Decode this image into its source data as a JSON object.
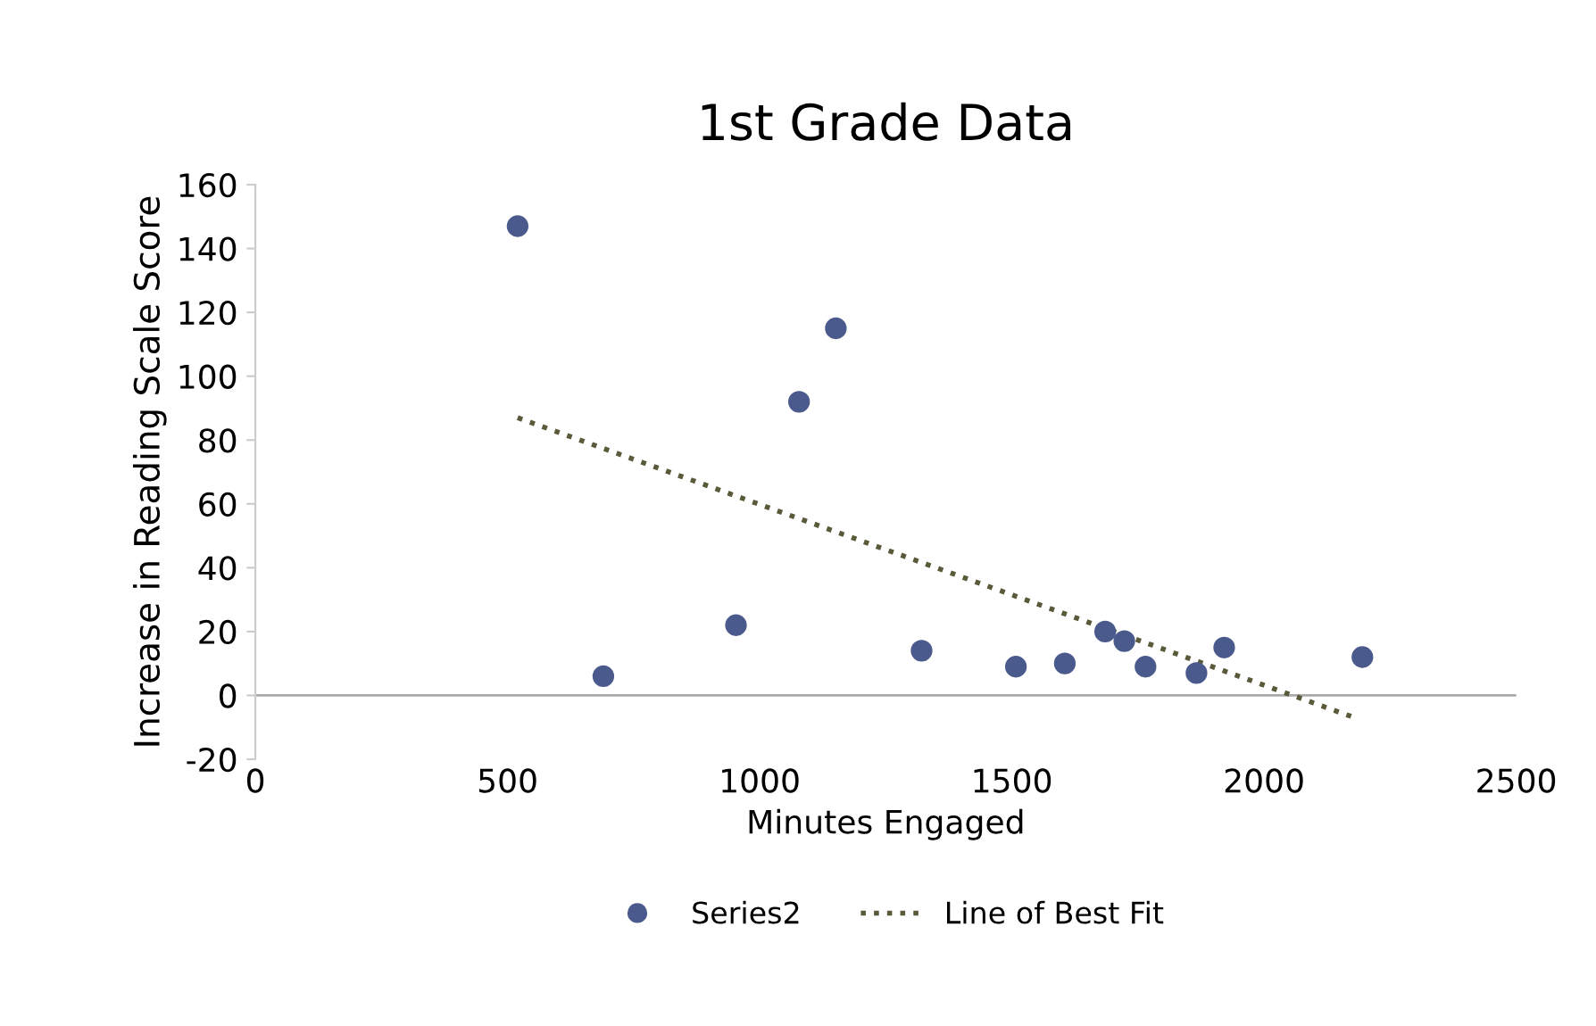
{
  "chart_data": {
    "type": "scatter",
    "title": "1st Grade Data",
    "xlabel": "Minutes Engaged",
    "ylabel": "Increase in Reading Scale Score",
    "xlim": [
      0,
      2500
    ],
    "xticks": [
      0,
      500,
      1000,
      1500,
      2000,
      2500
    ],
    "ylim": [
      -20,
      160
    ],
    "yticks": [
      -20,
      0,
      20,
      40,
      60,
      80,
      100,
      120,
      140,
      160
    ],
    "grid": false,
    "legend": "bottom",
    "series": [
      {
        "name": "Series2",
        "marker": "circle",
        "color": "#4a5a8c",
        "x": [
          520,
          690,
          953,
          1078,
          1151,
          1321,
          1508,
          1605,
          1685,
          1723,
          1765,
          1866,
          1921,
          2195
        ],
        "values": [
          147,
          6,
          22,
          92,
          115,
          14,
          9,
          10,
          20,
          17,
          9,
          7,
          15,
          12
        ]
      },
      {
        "name": "Line of Best Fit",
        "type": "line",
        "color": "#5a5a3a",
        "line_style": "dotted",
        "x": [
          520,
          2180
        ],
        "values": [
          87,
          -7
        ]
      }
    ]
  }
}
